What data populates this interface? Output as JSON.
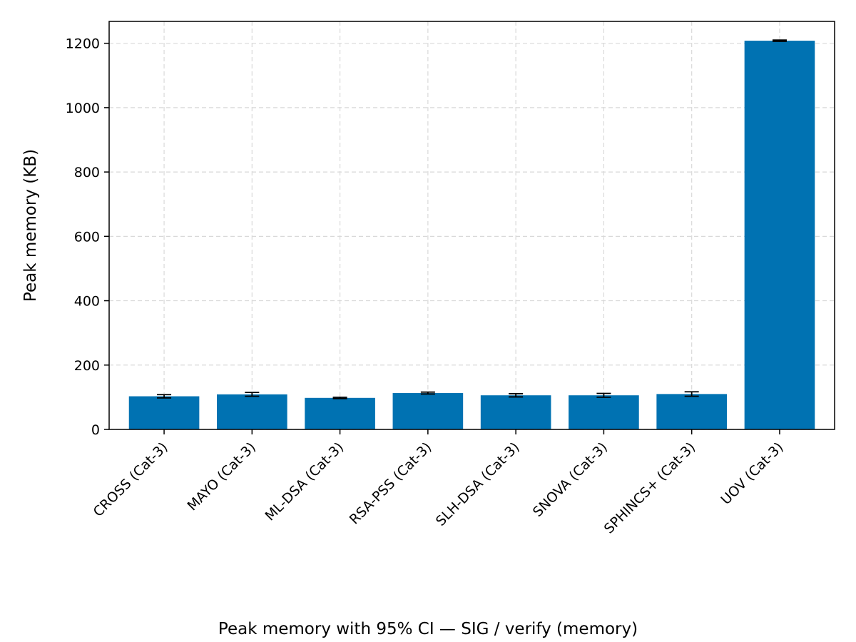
{
  "chart_data": {
    "type": "bar",
    "categories": [
      "CROSS (Cat-3)",
      "MAYO (Cat-3)",
      "ML-DSA (Cat-3)",
      "RSA-PSS (Cat-3)",
      "SLH-DSA (Cat-3)",
      "SNOVA (Cat-3)",
      "SPHINCS+ (Cat-3)",
      "UOV (Cat-3)"
    ],
    "values": [
      103,
      109,
      98,
      113,
      106,
      106,
      110,
      1208
    ],
    "ci": [
      5,
      6,
      2,
      3,
      5,
      6,
      7,
      2
    ],
    "title": "",
    "xlabel": "Peak memory with 95% CI — SIG / verify (memory)",
    "ylabel": "Peak memory (KB)",
    "ylim": [
      0,
      1268
    ],
    "yticks": [
      0,
      200,
      400,
      600,
      800,
      1000,
      1200
    ],
    "grid": true,
    "bar_color": "#0072b2"
  }
}
